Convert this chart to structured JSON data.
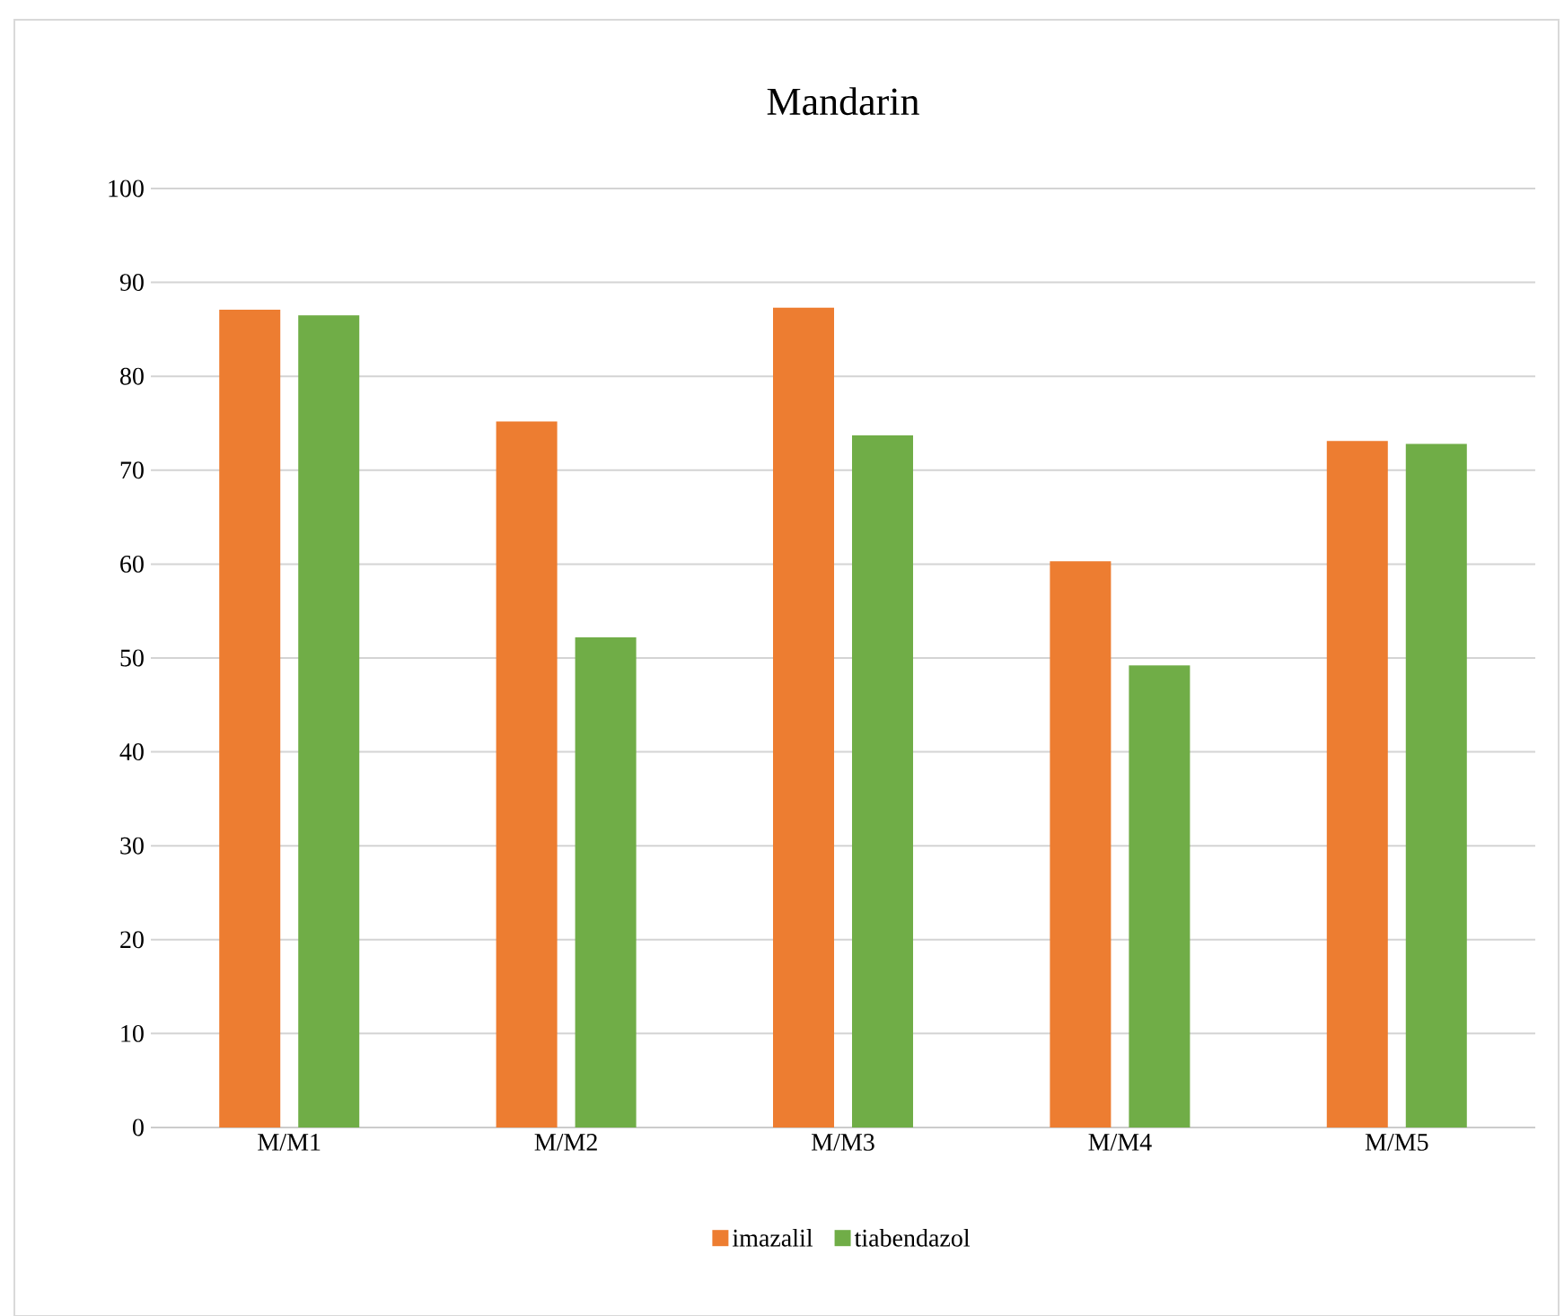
{
  "chart_data": {
    "type": "bar",
    "title": "Mandarin",
    "categories": [
      "M/M1",
      "M/M2",
      "M/M3",
      "M/M4",
      "M/M5"
    ],
    "series": [
      {
        "name": "imazalil",
        "color": "#ed7d31",
        "values": [
          87.1,
          75.2,
          87.3,
          60.3,
          73.1
        ]
      },
      {
        "name": "tiabendazol",
        "color": "#70ad47",
        "values": [
          86.5,
          52.2,
          73.7,
          49.2,
          72.8
        ]
      }
    ],
    "ylim": [
      0,
      100
    ],
    "yticks": [
      0,
      10,
      20,
      30,
      40,
      50,
      60,
      70,
      80,
      90,
      100
    ],
    "grid": "y",
    "legend": "bottom"
  }
}
